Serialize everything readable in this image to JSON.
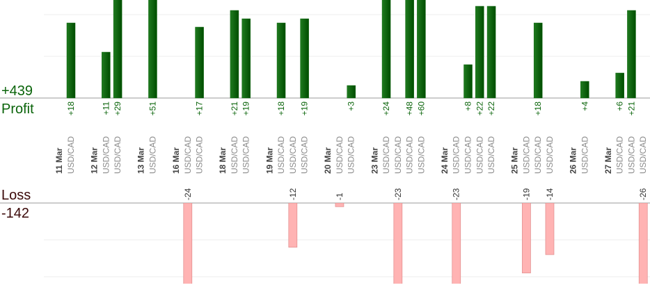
{
  "chart_data": {
    "type": "bar",
    "profit_total": "+439",
    "profit_label": "Profit",
    "loss_label": "Loss",
    "loss_total": "-142",
    "ylim": [
      0,
      23.5
    ],
    "yticks": [
      10,
      20
    ],
    "y2lim": [
      0,
      -22
    ],
    "y2ticks": [
      -10,
      -20
    ],
    "grid": true,
    "profit_color": "#0a640a",
    "loss_color": "#ffb3b3",
    "days": [
      {
        "date": "11 Mar",
        "trades": [
          {
            "pair": "USD/CAD",
            "value": 18,
            "label": "+18"
          }
        ]
      },
      {
        "date": "12 Mar",
        "trades": [
          {
            "pair": "USD/CAD",
            "value": 11,
            "label": "+11"
          },
          {
            "pair": "USD/CAD",
            "value": 29,
            "label": "+29"
          }
        ]
      },
      {
        "date": "13 Mar",
        "trades": [
          {
            "pair": "USD/CAD",
            "value": 51,
            "label": "+51"
          }
        ]
      },
      {
        "date": "16 Mar",
        "trades": [
          {
            "pair": "USD/CAD",
            "value": -24
          },
          {
            "pair": "USD/CAD",
            "value": 17,
            "label": "+17"
          }
        ]
      },
      {
        "date": "18 Mar",
        "trades": [
          {
            "pair": "USD/CAD",
            "value": 21,
            "label": "+21"
          },
          {
            "pair": "USD/CAD",
            "value": 19,
            "label": "+19"
          }
        ]
      },
      {
        "date": "19 Mar",
        "trades": [
          {
            "pair": "USD/CAD",
            "value": 18,
            "label": "+18"
          },
          {
            "pair": "USD/CAD",
            "value": -12
          },
          {
            "pair": "USD/CAD",
            "value": 19,
            "label": "+19"
          }
        ]
      },
      {
        "date": "20 Mar",
        "trades": [
          {
            "pair": "USD/CAD",
            "value": -1
          },
          {
            "pair": "USD/CAD",
            "value": 3,
            "label": "+3"
          }
        ]
      },
      {
        "date": "23 Mar",
        "trades": [
          {
            "pair": "USD/CAD",
            "value": 24,
            "label": "+24"
          },
          {
            "pair": "USD/CAD",
            "value": -23
          },
          {
            "pair": "USD/CAD",
            "value": 48,
            "label": "+48"
          },
          {
            "pair": "USD/CAD",
            "value": 60,
            "label": "+60"
          }
        ]
      },
      {
        "date": "24 Mar",
        "trades": [
          {
            "pair": "USD/CAD",
            "value": -23
          },
          {
            "pair": "USD/CAD",
            "value": 8,
            "label": "+8"
          },
          {
            "pair": "USD/CAD",
            "value": 22,
            "label": "+22"
          },
          {
            "pair": "USD/CAD",
            "value": 22,
            "label": "+22"
          }
        ]
      },
      {
        "date": "25 Mar",
        "trades": [
          {
            "pair": "USD/CAD",
            "value": -19
          },
          {
            "pair": "USD/CAD",
            "value": 18,
            "label": "+18"
          },
          {
            "pair": "USD/CAD",
            "value": -14
          }
        ]
      },
      {
        "date": "26 Mar",
        "trades": [
          {
            "pair": "USD/CAD",
            "value": 4,
            "label": "+4"
          }
        ]
      },
      {
        "date": "27 Mar",
        "trades": [
          {
            "pair": "USD/CAD",
            "value": 6,
            "label": "+6"
          },
          {
            "pair": "USD/CAD",
            "value": 21,
            "label": "+21"
          },
          {
            "pair": "USD/CAD",
            "value": -26
          }
        ]
      }
    ]
  }
}
